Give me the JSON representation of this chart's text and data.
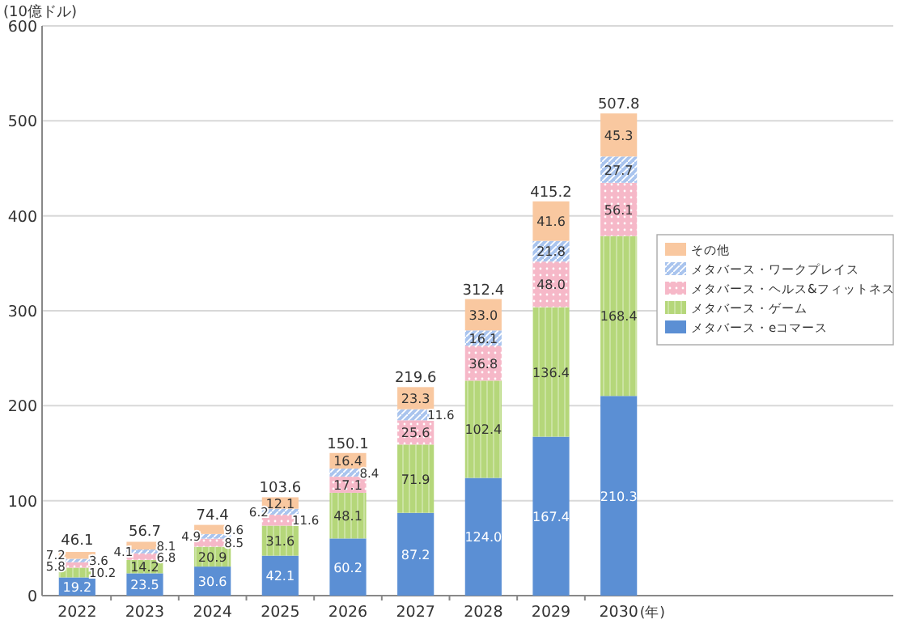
{
  "chart_data": {
    "type": "bar",
    "stacked": true,
    "ylabel": "(10億ドル)",
    "xlabel": "(年)",
    "categories": [
      "2022",
      "2023",
      "2024",
      "2025",
      "2026",
      "2027",
      "2028",
      "2029",
      "2030"
    ],
    "series": [
      {
        "name": "メタバース・eコマース",
        "color": "#5b8fd4",
        "values": [
          19.2,
          23.5,
          30.6,
          42.1,
          60.2,
          87.2,
          124.0,
          167.4,
          210.3
        ],
        "value_labels": [
          "19.2",
          "23.5",
          "30.6",
          "42.1",
          "60.2",
          "87.2",
          "124.0",
          "167.4",
          "210.3"
        ]
      },
      {
        "name": "メタバース・ゲーム",
        "color": "#b5d77a",
        "values": [
          10.2,
          14.2,
          20.9,
          31.6,
          48.1,
          71.9,
          102.4,
          136.4,
          168.4
        ],
        "value_labels": [
          "10.2",
          "14.2",
          "20.9",
          "31.6",
          "48.1",
          "71.9",
          "102.4",
          "136.4",
          "168.4"
        ]
      },
      {
        "name": "メタバース・ヘルス&フィットネス",
        "color": "#f6b8c8",
        "values": [
          5.8,
          6.8,
          8.5,
          11.6,
          17.1,
          25.6,
          36.8,
          48.0,
          56.1
        ],
        "value_labels": [
          "5.8",
          "6.8",
          "8.5",
          "11.6",
          "17.1",
          "25.6",
          "36.8",
          "48.0",
          "56.1"
        ]
      },
      {
        "name": "メタバース・ワークプレイス",
        "color": "#a9c4ee",
        "values": [
          3.6,
          4.1,
          4.9,
          6.2,
          8.4,
          11.6,
          16.1,
          21.8,
          27.7
        ],
        "value_labels": [
          "3.6",
          "4.1",
          "4.9",
          "6.2",
          "8.4",
          "11.6",
          "16.1",
          "21.8",
          "27.7"
        ]
      },
      {
        "name": "その他",
        "color": "#f9c8a0",
        "values": [
          7.2,
          8.1,
          9.6,
          12.1,
          16.4,
          23.3,
          33.0,
          41.6,
          45.3
        ],
        "value_labels": [
          "7.2",
          "8.1",
          "9.6",
          "12.1",
          "16.4",
          "23.3",
          "33.0",
          "41.6",
          "45.3"
        ]
      }
    ],
    "totals": [
      "46.1",
      "56.7",
      "74.4",
      "103.6",
      "150.1",
      "219.6",
      "312.4",
      "415.2",
      "507.8"
    ],
    "data_labels": true,
    "ylim": [
      0,
      600
    ],
    "yticks": [
      0,
      100,
      200,
      300,
      400,
      500,
      600
    ],
    "grid": "y",
    "legend": "right"
  }
}
